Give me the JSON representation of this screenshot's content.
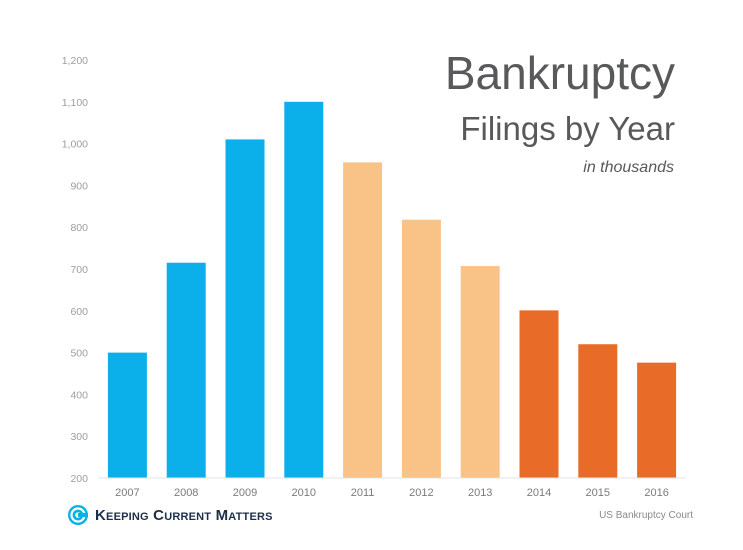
{
  "title": "Bankruptcy",
  "subtitle": "Filings by Year",
  "unit_note": "in thousands",
  "brand": {
    "name": "Keeping Current Matters",
    "icon": "kcm-logo-icon"
  },
  "source": "US Bankruptcy Court",
  "colors": {
    "blue": "#0bb0ea",
    "peach": "#f9c287",
    "orange": "#e86c28",
    "text": "#58595b"
  },
  "chart_data": {
    "type": "bar",
    "categories": [
      "2007",
      "2008",
      "2009",
      "2010",
      "2011",
      "2012",
      "2013",
      "2014",
      "2015",
      "2016"
    ],
    "values": [
      500,
      715,
      1010,
      1100,
      955,
      818,
      707,
      601,
      520,
      476
    ],
    "bar_colors": [
      "#0bb0ea",
      "#0bb0ea",
      "#0bb0ea",
      "#0bb0ea",
      "#f9c287",
      "#f9c287",
      "#f9c287",
      "#e86c28",
      "#e86c28",
      "#e86c28"
    ],
    "yticks": [
      "200",
      "300",
      "400",
      "500",
      "600",
      "700",
      "800",
      "900",
      "1,000",
      "1,100",
      "1,200"
    ],
    "ylim": [
      200,
      1200
    ],
    "grid": false,
    "legend": "none"
  }
}
